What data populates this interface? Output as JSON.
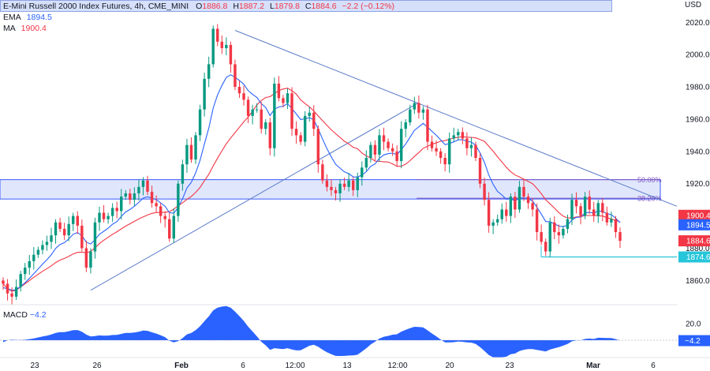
{
  "header": {
    "title": "E-Mini Russell 2000 Index Futures, 4h, CME_MINI",
    "ohlc": [
      {
        "key": "O",
        "value": "1886.8"
      },
      {
        "key": "H",
        "value": "1887.2"
      },
      {
        "key": "L",
        "value": "1879.8"
      },
      {
        "key": "C",
        "value": "1884.6"
      }
    ],
    "change": "−2.2 (−0.12%)"
  },
  "indicators": {
    "ema": {
      "label": "EMA",
      "value": "1894.5",
      "color": "#2962ff"
    },
    "ma": {
      "label": "MA",
      "value": "1900.4",
      "color": "#f23645"
    },
    "macd": {
      "label": "MACD",
      "value": "−4.2"
    }
  },
  "axis": {
    "currency": "USD"
  },
  "colors": {
    "up": "#089981",
    "down": "#f23645",
    "zone_fill": "#dbe3fb",
    "zone_border": "#3d5afe",
    "trendline": "#5b7bc9",
    "macd_fill": "#2962ff",
    "support_line": "#26c6da",
    "fib_line": "#7e57c2"
  },
  "chart_data": {
    "type": "candlestick",
    "symbol": "E-Mini Russell 2000 Index Futures",
    "timeframe": "4h",
    "y_ticks": [
      1860,
      1880,
      1900,
      1920,
      1940,
      1960,
      1980,
      2000,
      2020
    ],
    "ylim": [
      1846,
      2026
    ],
    "x_ticks": [
      "23",
      "26",
      "Feb",
      "6",
      "12:00",
      "13",
      "12:00",
      "20",
      "23",
      "Mar",
      "6"
    ],
    "price_labels": [
      {
        "label": "1900.4",
        "value": 1900.4,
        "color": "#f23645"
      },
      {
        "label": "1894.5",
        "value": 1894.5,
        "color": "#2962ff"
      },
      {
        "label": "1884.6",
        "value": 1884.6,
        "color": "#f23645"
      },
      {
        "label": "1874.6",
        "value": 1874.6,
        "color": "#26c6da"
      }
    ],
    "zone": {
      "low": 1910.5,
      "high": 1922.5
    },
    "fib_levels": [
      {
        "label": "50.00%",
        "value": 1922.5
      },
      {
        "label": "38.20%",
        "value": 1911
      }
    ],
    "support_level": 1874.6,
    "closes": [
      1858,
      1852,
      1850,
      1856,
      1864,
      1868,
      1872,
      1876,
      1879,
      1882,
      1884,
      1888,
      1896,
      1892,
      1888,
      1895,
      1900,
      1894,
      1880,
      1868,
      1878,
      1896,
      1902,
      1898,
      1900,
      1905,
      1903,
      1912,
      1914,
      1910,
      1914,
      1918,
      1922,
      1915,
      1908,
      1906,
      1900,
      1898,
      1886,
      1900,
      1920,
      1932,
      1944,
      1935,
      1950,
      1966,
      1985,
      1994,
      2016,
      2008,
      2004,
      2006,
      1994,
      1980,
      1976,
      1972,
      1962,
      1966,
      1966,
      1954,
      1958,
      1942,
      1982,
      1973,
      1970,
      1976,
      1954,
      1950,
      1946,
      1962,
      1964,
      1954,
      1932,
      1922,
      1918,
      1916,
      1914,
      1920,
      1918,
      1922,
      1916,
      1924,
      1930,
      1936,
      1944,
      1938,
      1950,
      1946,
      1942,
      1940,
      1934,
      1954,
      1958,
      1966,
      1970,
      1964,
      1966,
      1946,
      1942,
      1940,
      1936,
      1932,
      1948,
      1950,
      1952,
      1948,
      1942,
      1944,
      1936,
      1920,
      1910,
      1894,
      1896,
      1898,
      1904,
      1900,
      1912,
      1904,
      1918,
      1912,
      1908,
      1904,
      1890,
      1884,
      1878,
      1896,
      1890,
      1888,
      1892,
      1898,
      1910,
      1906,
      1900,
      1912,
      1904,
      1900,
      1908,
      1902,
      1896,
      1898,
      1890,
      1884.6
    ],
    "ema_start": 1855,
    "ma_period": 20,
    "macd_ticks": [
      0,
      20
    ]
  }
}
